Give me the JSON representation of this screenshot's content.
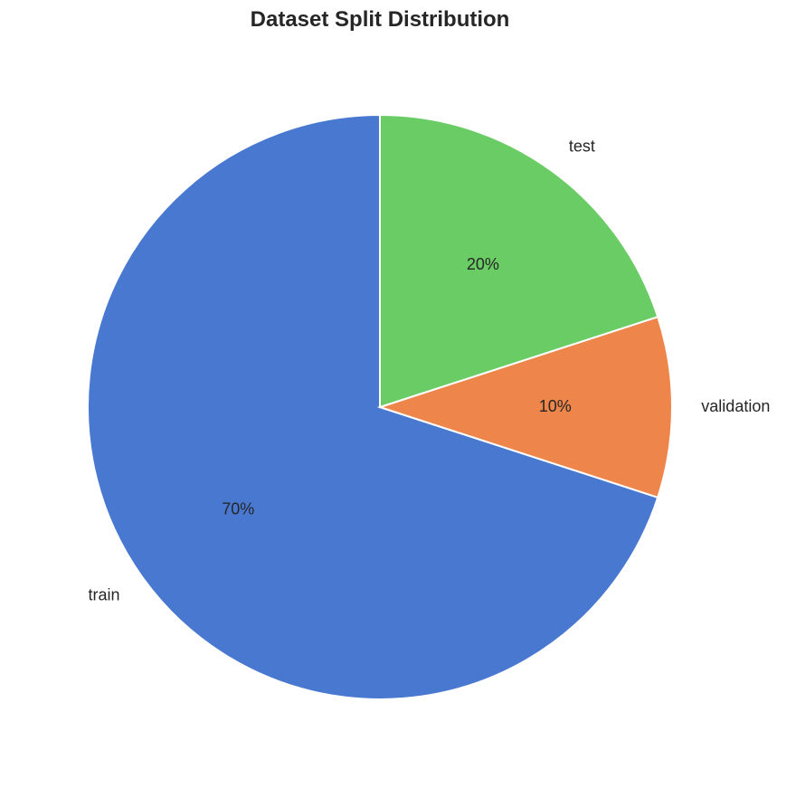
{
  "chart_data": {
    "type": "pie",
    "title": "Dataset Split Distribution",
    "categories": [
      "train",
      "validation",
      "test"
    ],
    "values": [
      70,
      10,
      20
    ],
    "labels": [
      "70%",
      "10%",
      "20%"
    ],
    "colors": [
      "#4878d0",
      "#ee854a",
      "#6acc64"
    ],
    "start_angle_deg": 90,
    "direction": "counterclockwise"
  }
}
